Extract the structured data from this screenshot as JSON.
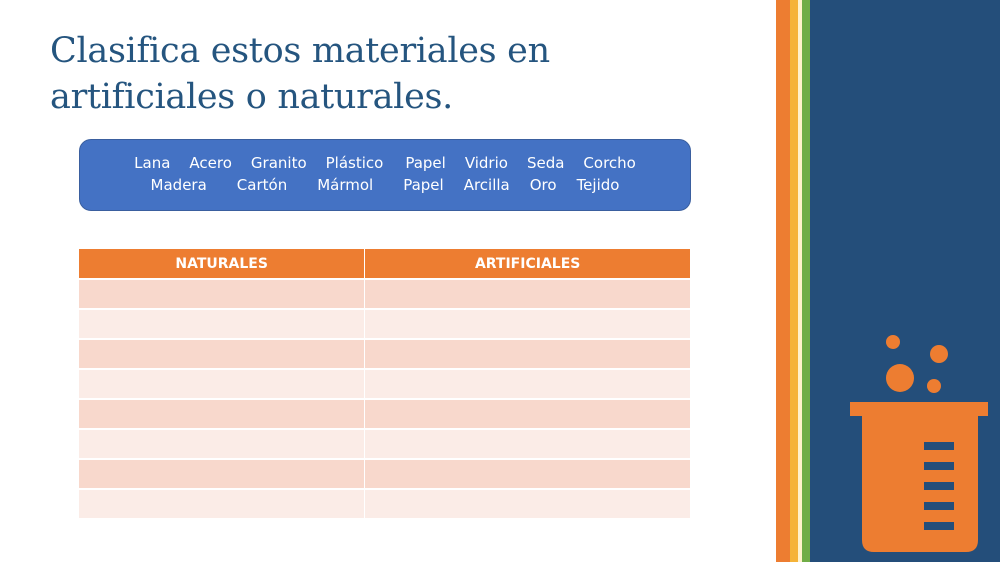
{
  "slide": {
    "title_line1": "Clasifica estos materiales en",
    "title_line2": "artificiales o naturales."
  },
  "word_bank": {
    "row1": [
      "Lana",
      "Acero",
      "Granito",
      "Plástico",
      "Papel",
      "Vidrio",
      "Seda",
      "Corcho"
    ],
    "row2": [
      "Madera",
      "Cartón",
      "Mármol",
      "Papel",
      "Arcilla",
      "Oro",
      "Tejido"
    ]
  },
  "table": {
    "headers": [
      "NATURALES",
      "ARTIFICIALES"
    ],
    "rows": [
      [
        "",
        ""
      ],
      [
        "",
        ""
      ],
      [
        "",
        ""
      ],
      [
        "",
        ""
      ],
      [
        "",
        ""
      ],
      [
        "",
        ""
      ],
      [
        "",
        ""
      ],
      [
        "",
        ""
      ]
    ]
  },
  "colors": {
    "title": "#25557f",
    "word_box": "#4472c4",
    "table_header": "#ed7d31",
    "row_dark": "#f8d8cc",
    "row_light": "#fbece7",
    "panel": "#244e7a",
    "stripe_orange": "#ed7d31",
    "stripe_yellow": "#f5b338",
    "stripe_green": "#70ad47"
  },
  "icons": [
    "beaker-icon"
  ]
}
